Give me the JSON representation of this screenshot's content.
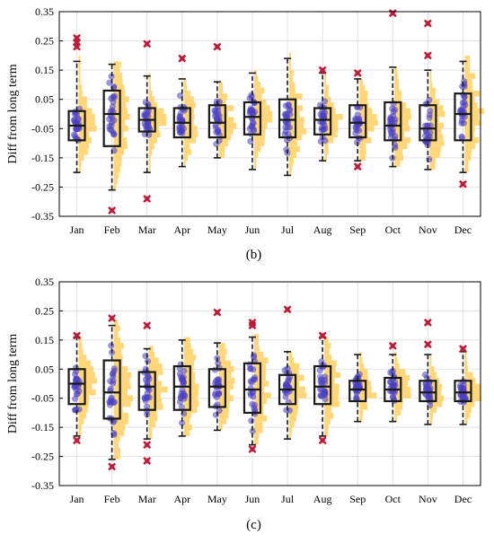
{
  "chart_data": [
    {
      "type": "box",
      "caption": "(b)",
      "ylabel": "Diff from long term",
      "ylim": [
        -0.35,
        0.35
      ],
      "yticks": [
        -0.35,
        -0.25,
        -0.15,
        -0.05,
        0.05,
        0.15,
        0.25,
        0.35
      ],
      "ytick_labels": [
        "-0.35",
        "-0.25",
        "-0.15",
        "-0.05",
        "0.05",
        "0.15",
        "0.25",
        "0.35"
      ],
      "grid": true,
      "categories": [
        "Jan",
        "Feb",
        "Mar",
        "Apr",
        "May",
        "Jun",
        "Jul",
        "Aug",
        "Sep",
        "Oct",
        "Nov",
        "Dec"
      ],
      "boxes": [
        {
          "q1": -0.09,
          "median": -0.04,
          "q3": 0.01,
          "whisker_low": -0.2,
          "whisker_high": 0.18,
          "outliers": [
            0.26,
            0.245,
            0.23
          ]
        },
        {
          "q1": -0.11,
          "median": 0.0,
          "q3": 0.08,
          "whisker_low": -0.26,
          "whisker_high": 0.17,
          "outliers": [
            -0.33
          ]
        },
        {
          "q1": -0.06,
          "median": -0.02,
          "q3": 0.02,
          "whisker_low": -0.2,
          "whisker_high": 0.13,
          "outliers": [
            0.24,
            -0.29
          ]
        },
        {
          "q1": -0.08,
          "median": -0.03,
          "q3": 0.02,
          "whisker_low": -0.18,
          "whisker_high": 0.12,
          "outliers": [
            0.19
          ]
        },
        {
          "q1": -0.08,
          "median": -0.03,
          "q3": 0.03,
          "whisker_low": -0.15,
          "whisker_high": 0.11,
          "outliers": [
            0.23
          ]
        },
        {
          "q1": -0.07,
          "median": -0.01,
          "q3": 0.04,
          "whisker_low": -0.19,
          "whisker_high": 0.14,
          "outliers": []
        },
        {
          "q1": -0.08,
          "median": -0.02,
          "q3": 0.05,
          "whisker_low": -0.21,
          "whisker_high": 0.19,
          "outliers": []
        },
        {
          "q1": -0.07,
          "median": -0.02,
          "q3": 0.02,
          "whisker_low": -0.16,
          "whisker_high": 0.14,
          "outliers": [
            0.15
          ]
        },
        {
          "q1": -0.08,
          "median": -0.03,
          "q3": 0.03,
          "whisker_low": -0.16,
          "whisker_high": 0.12,
          "outliers": [
            0.14,
            -0.18
          ]
        },
        {
          "q1": -0.09,
          "median": -0.04,
          "q3": 0.04,
          "whisker_low": -0.18,
          "whisker_high": 0.16,
          "outliers": [
            0.345
          ]
        },
        {
          "q1": -0.09,
          "median": -0.05,
          "q3": 0.03,
          "whisker_low": -0.19,
          "whisker_high": 0.15,
          "outliers": [
            0.31,
            0.2
          ]
        },
        {
          "q1": -0.09,
          "median": 0.0,
          "q3": 0.07,
          "whisker_low": -0.2,
          "whisker_high": 0.18,
          "outliers": [
            -0.24
          ]
        }
      ]
    },
    {
      "type": "box",
      "caption": "(c)",
      "ylabel": "Diff from long term",
      "ylim": [
        -0.35,
        0.35
      ],
      "yticks": [
        -0.35,
        -0.25,
        -0.15,
        -0.05,
        0.05,
        0.15,
        0.25,
        0.35
      ],
      "ytick_labels": [
        "-0.35",
        "-0.25",
        "-0.15",
        "-0.05",
        "0.05",
        "0.15",
        "0.25",
        "0.35"
      ],
      "grid": true,
      "categories": [
        "Jan",
        "Feb",
        "Mar",
        "Apr",
        "May",
        "Jun",
        "Jul",
        "Aug",
        "Sep",
        "Oct",
        "Nov",
        "Dec"
      ],
      "boxes": [
        {
          "q1": -0.07,
          "median": 0.0,
          "q3": 0.05,
          "whisker_low": -0.18,
          "whisker_high": 0.16,
          "outliers": [
            0.165,
            -0.195
          ]
        },
        {
          "q1": -0.12,
          "median": -0.03,
          "q3": 0.08,
          "whisker_low": -0.26,
          "whisker_high": 0.2,
          "outliers": [
            0.225,
            -0.285
          ]
        },
        {
          "q1": -0.09,
          "median": -0.01,
          "q3": 0.04,
          "whisker_low": -0.19,
          "whisker_high": 0.12,
          "outliers": [
            0.2,
            -0.21,
            -0.265
          ]
        },
        {
          "q1": -0.09,
          "median": -0.01,
          "q3": 0.06,
          "whisker_low": -0.18,
          "whisker_high": 0.15,
          "outliers": []
        },
        {
          "q1": -0.08,
          "median": -0.01,
          "q3": 0.05,
          "whisker_low": -0.16,
          "whisker_high": 0.14,
          "outliers": [
            0.245
          ]
        },
        {
          "q1": -0.1,
          "median": -0.02,
          "q3": 0.07,
          "whisker_low": -0.21,
          "whisker_high": 0.16,
          "outliers": [
            0.21,
            0.2,
            -0.225
          ]
        },
        {
          "q1": -0.07,
          "median": -0.02,
          "q3": 0.03,
          "whisker_low": -0.19,
          "whisker_high": 0.11,
          "outliers": [
            0.255
          ]
        },
        {
          "q1": -0.07,
          "median": -0.01,
          "q3": 0.06,
          "whisker_low": -0.18,
          "whisker_high": 0.16,
          "outliers": [
            0.165,
            -0.195
          ]
        },
        {
          "q1": -0.06,
          "median": -0.02,
          "q3": 0.01,
          "whisker_low": -0.13,
          "whisker_high": 0.1,
          "outliers": []
        },
        {
          "q1": -0.06,
          "median": -0.02,
          "q3": 0.02,
          "whisker_low": -0.13,
          "whisker_high": 0.1,
          "outliers": [
            0.13
          ]
        },
        {
          "q1": -0.06,
          "median": -0.03,
          "q3": 0.01,
          "whisker_low": -0.14,
          "whisker_high": 0.1,
          "outliers": [
            0.21,
            0.135
          ]
        },
        {
          "q1": -0.06,
          "median": -0.03,
          "q3": 0.01,
          "whisker_low": -0.14,
          "whisker_high": 0.11,
          "outliers": [
            0.12
          ]
        }
      ]
    }
  ],
  "colors": {
    "box": "#1a1a1a",
    "points": "#4a3fbf",
    "histogram": "#ffd36b",
    "outlier_marker": "#c2182b",
    "grid": "#e2e2e2",
    "axis": "#000000"
  }
}
